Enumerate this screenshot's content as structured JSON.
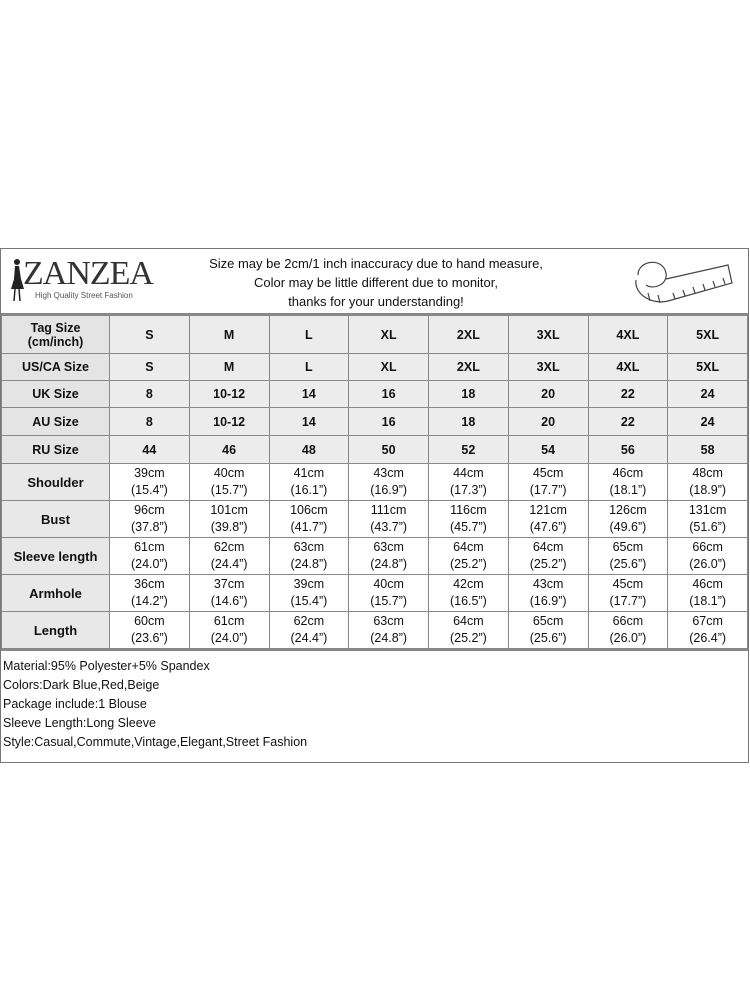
{
  "header": {
    "brand": "ZANZEA",
    "tagline": "High Quality Street Fashion",
    "notice": [
      "Size may be 2cm/1 inch inaccuracy due to hand measure,",
      "Color may be little different due to monitor,",
      "thanks for your understanding!"
    ],
    "icon": "measuring-tape-icon"
  },
  "size_rows": [
    {
      "label": "Tag Size (cm/inch)",
      "values": [
        "S",
        "M",
        "L",
        "XL",
        "2XL",
        "3XL",
        "4XL",
        "5XL"
      ]
    },
    {
      "label": "US/CA Size",
      "values": [
        "S",
        "M",
        "L",
        "XL",
        "2XL",
        "3XL",
        "4XL",
        "5XL"
      ]
    },
    {
      "label": "UK Size",
      "values": [
        "8",
        "10-12",
        "14",
        "16",
        "18",
        "20",
        "22",
        "24"
      ]
    },
    {
      "label": "AU Size",
      "values": [
        "8",
        "10-12",
        "14",
        "16",
        "18",
        "20",
        "22",
        "24"
      ]
    },
    {
      "label": "RU Size",
      "values": [
        "44",
        "46",
        "48",
        "50",
        "52",
        "54",
        "56",
        "58"
      ]
    }
  ],
  "measure_rows": [
    {
      "label": "Shoulder",
      "cm": [
        "39cm",
        "40cm",
        "41cm",
        "43cm",
        "44cm",
        "45cm",
        "46cm",
        "48cm"
      ],
      "inch": [
        "(15.4”)",
        "(15.7”)",
        "(16.1”)",
        "(16.9”)",
        "(17.3”)",
        "(17.7”)",
        "(18.1”)",
        "(18.9”)"
      ]
    },
    {
      "label": "Bust",
      "cm": [
        "96cm",
        "101cm",
        "106cm",
        "111cm",
        "116cm",
        "121cm",
        "126cm",
        "131cm"
      ],
      "inch": [
        "(37.8”)",
        "(39.8”)",
        "(41.7”)",
        "(43.7”)",
        "(45.7”)",
        "(47.6”)",
        "(49.6”)",
        "(51.6”)"
      ]
    },
    {
      "label": "Sleeve length",
      "cm": [
        "61cm",
        "62cm",
        "63cm",
        "63cm",
        "64cm",
        "64cm",
        "65cm",
        "66cm"
      ],
      "inch": [
        "(24.0”)",
        "(24.4”)",
        "(24.8”)",
        "(24.8”)",
        "(25.2”)",
        "(25.2”)",
        "(25.6”)",
        "(26.0”)"
      ]
    },
    {
      "label": "Armhole",
      "cm": [
        "36cm",
        "37cm",
        "39cm",
        "40cm",
        "42cm",
        "43cm",
        "45cm",
        "46cm"
      ],
      "inch": [
        "(14.2”)",
        "(14.6”)",
        "(15.4”)",
        "(15.7”)",
        "(16.5”)",
        "(16.9”)",
        "(17.7”)",
        "(18.1”)"
      ]
    },
    {
      "label": "Length",
      "cm": [
        "60cm",
        "61cm",
        "62cm",
        "63cm",
        "64cm",
        "65cm",
        "66cm",
        "67cm"
      ],
      "inch": [
        "(23.6”)",
        "(24.0”)",
        "(24.4”)",
        "(24.8”)",
        "(25.2”)",
        "(25.6”)",
        "(26.0”)",
        "(26.4”)"
      ]
    }
  ],
  "info": [
    "Material:95% Polyester+5% Spandex",
    "Colors:Dark Blue,Red,Beige",
    "Package include:1 Blouse",
    "Sleeve Length:Long Sleeve",
    "Style:Casual,Commute,Vintage,Elegant,Street Fashion"
  ]
}
